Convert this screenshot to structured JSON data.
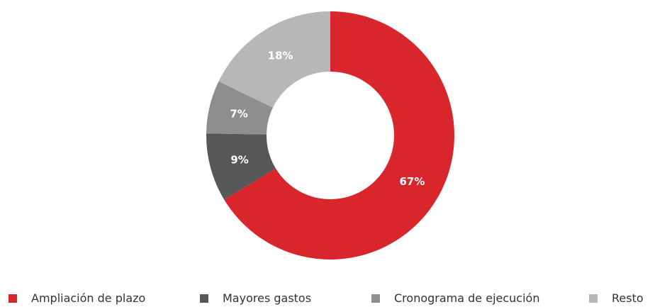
{
  "chart_data": {
    "type": "pie",
    "donut": true,
    "categories": [
      "Ampliación de plazo",
      "Mayores gastos",
      "Cronograma de ejecución",
      "Resto"
    ],
    "values": [
      67,
      9,
      7,
      18
    ],
    "value_labels": [
      "67%",
      "9%",
      "7%",
      "18%"
    ],
    "colors": [
      "#d9262c",
      "#575757",
      "#8e8e8e",
      "#b7b7b7"
    ],
    "start_angle": "top",
    "direction": "clockwise",
    "legend_position": "bottom",
    "title": "",
    "xlabel": "",
    "ylabel": ""
  },
  "legend": {
    "items": [
      {
        "label": "Ampliación de plazo",
        "color": "#d9262c"
      },
      {
        "label": "Mayores gastos",
        "color": "#575757"
      },
      {
        "label": "Cronograma de ejecución",
        "color": "#8e8e8e"
      },
      {
        "label": "Resto",
        "color": "#b7b7b7"
      }
    ]
  }
}
